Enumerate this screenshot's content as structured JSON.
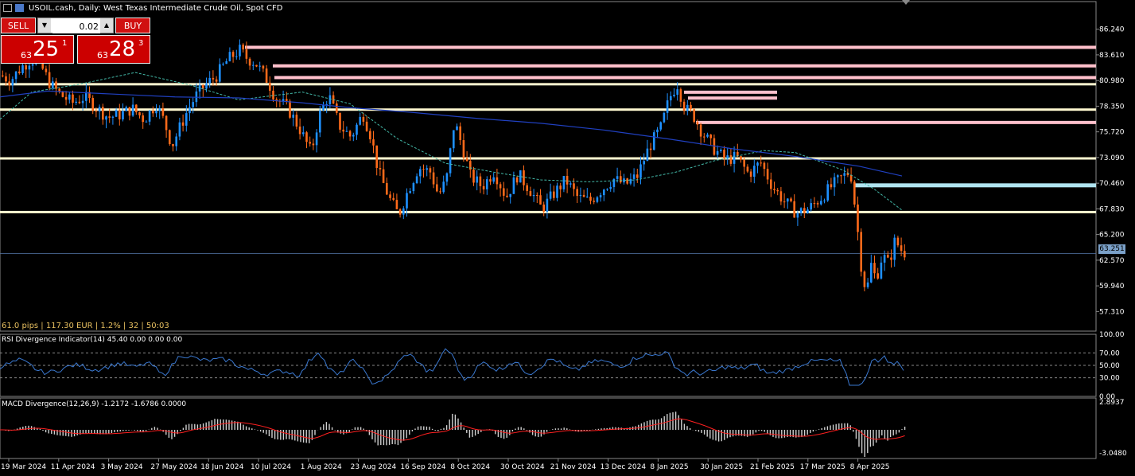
{
  "window": {
    "title": "USOIL.cash, Daily:  West Texas Intermediate Crude Oil, Spot CFD"
  },
  "trade_panel": {
    "sell_label": "SELL",
    "buy_label": "BUY",
    "volume": "0.02",
    "sell_price": {
      "prefix": "63",
      "big": "25",
      "sup": "1"
    },
    "buy_price": {
      "prefix": "63",
      "big": "28",
      "sup": "3"
    }
  },
  "info_line": "61.0 pips | 117.30 EUR | 1.2% | 32 | 50:03",
  "current_price": "63.251",
  "colors": {
    "bull": "#1e90ff",
    "bear": "#ff6a1a",
    "zone_pink": "#ffc0cb",
    "zone_cyan": "#b0e4f0",
    "level_white": "#fff8d0",
    "ma_fast": "#4a90c8",
    "ma_slow": "#2040c0",
    "rsi_line": "#3a78d0",
    "macd_hist": "#d0d0d0",
    "macd_signal": "#ff2020"
  },
  "price_axis": [
    "86.240",
    "83.610",
    "80.980",
    "78.350",
    "75.720",
    "73.090",
    "70.460",
    "67.830",
    "65.200",
    "62.570",
    "59.940",
    "57.310"
  ],
  "date_axis": [
    "19 Mar 2024",
    "11 Apr 2024",
    "3 May 2024",
    "27 May 2024",
    "18 Jun 2024",
    "10 Jul 2024",
    "1 Aug 2024",
    "23 Aug 2024",
    "16 Sep 2024",
    "8 Oct 2024",
    "30 Oct 2024",
    "21 Nov 2024",
    "13 Dec 2024",
    "8 Jan 2025",
    "30 Jan 2025",
    "21 Feb 2025",
    "17 Mar 2025",
    "8 Apr 2025"
  ],
  "rsi": {
    "label": "RSI Divergence Indicator(14) 45.40 0.00 0.00 0.00",
    "axis": [
      "100.00",
      "70.00",
      "50.00",
      "30.00",
      "0.00"
    ]
  },
  "macd": {
    "label": "MACD Divergence(12,26,9) -1.2172 -1.6786 0.0000",
    "axis": [
      "2.8937",
      "-3.0480"
    ]
  },
  "chart_data": {
    "type": "candlestick",
    "symbol": "USOIL.cash",
    "timeframe": "Daily",
    "ylim": [
      55.3,
      87.6
    ],
    "close_path": [
      [
        0,
        81.5
      ],
      [
        12,
        81.0
      ],
      [
        25,
        82.3
      ],
      [
        38,
        83.2
      ],
      [
        50,
        82.5
      ],
      [
        62,
        80.6
      ],
      [
        75,
        79.5
      ],
      [
        90,
        78.7
      ],
      [
        105,
        79.3
      ],
      [
        120,
        78.2
      ],
      [
        135,
        77.2
      ],
      [
        150,
        77.5
      ],
      [
        165,
        78.1
      ],
      [
        180,
        77.0
      ],
      [
        195,
        78.6
      ],
      [
        205,
        76.8
      ],
      [
        215,
        74.3
      ],
      [
        225,
        76.2
      ],
      [
        235,
        78.0
      ],
      [
        245,
        79.4
      ],
      [
        258,
        80.6
      ],
      [
        270,
        81.4
      ],
      [
        285,
        83.1
      ],
      [
        300,
        84.1
      ],
      [
        310,
        83.2
      ],
      [
        320,
        82.8
      ],
      [
        335,
        81.0
      ],
      [
        345,
        79.2
      ],
      [
        360,
        78.2
      ],
      [
        375,
        76.1
      ],
      [
        390,
        73.6
      ],
      [
        400,
        77.4
      ],
      [
        412,
        79.5
      ],
      [
        425,
        76.4
      ],
      [
        440,
        75.2
      ],
      [
        455,
        77.6
      ],
      [
        465,
        75.3
      ],
      [
        475,
        71.5
      ],
      [
        490,
        68.6
      ],
      [
        500,
        67.2
      ],
      [
        512,
        69.8
      ],
      [
        525,
        72.1
      ],
      [
        540,
        71.6
      ],
      [
        550,
        69.2
      ],
      [
        560,
        70.8
      ],
      [
        570,
        76.8
      ],
      [
        580,
        74.2
      ],
      [
        590,
        71.2
      ],
      [
        605,
        70.1
      ],
      [
        620,
        71.7
      ],
      [
        635,
        69.0
      ],
      [
        650,
        71.4
      ],
      [
        665,
        69.8
      ],
      [
        680,
        67.8
      ],
      [
        695,
        69.4
      ],
      [
        710,
        70.8
      ],
      [
        725,
        69.0
      ],
      [
        740,
        68.6
      ],
      [
        755,
        69.8
      ],
      [
        770,
        70.9
      ],
      [
        785,
        70.3
      ],
      [
        800,
        71.2
      ],
      [
        815,
        74.2
      ],
      [
        830,
        76.2
      ],
      [
        840,
        79.1
      ],
      [
        850,
        80.7
      ],
      [
        860,
        78.1
      ],
      [
        870,
        77.5
      ],
      [
        880,
        75.9
      ],
      [
        895,
        74.1
      ],
      [
        910,
        72.9
      ],
      [
        925,
        73.1
      ],
      [
        940,
        71.4
      ],
      [
        955,
        72.6
      ],
      [
        970,
        70.1
      ],
      [
        985,
        68.6
      ],
      [
        1000,
        67.4
      ],
      [
        1015,
        67.8
      ],
      [
        1030,
        68.9
      ],
      [
        1045,
        70.2
      ],
      [
        1058,
        71.1
      ],
      [
        1068,
        71.7
      ],
      [
        1075,
        67.2
      ],
      [
        1082,
        61.6
      ],
      [
        1088,
        59.2
      ],
      [
        1094,
        62.1
      ],
      [
        1100,
        60.6
      ],
      [
        1108,
        63.1
      ],
      [
        1116,
        62.2
      ],
      [
        1124,
        64.6
      ],
      [
        1132,
        63.6
      ],
      [
        1138,
        63.25
      ]
    ],
    "moving_average_fast": [
      [
        0,
        77.0
      ],
      [
        40,
        79.8
      ],
      [
        100,
        80.6
      ],
      [
        170,
        81.8
      ],
      [
        240,
        80.5
      ],
      [
        300,
        79.0
      ],
      [
        380,
        79.8
      ],
      [
        440,
        78.6
      ],
      [
        500,
        75.0
      ],
      [
        560,
        72.5
      ],
      [
        620,
        71.6
      ],
      [
        680,
        70.8
      ],
      [
        740,
        70.6
      ],
      [
        800,
        70.8
      ],
      [
        850,
        71.6
      ],
      [
        900,
        72.8
      ],
      [
        960,
        73.8
      ],
      [
        1000,
        73.6
      ],
      [
        1060,
        71.8
      ],
      [
        1100,
        69.8
      ],
      [
        1134,
        67.7
      ]
    ],
    "moving_average_slow": [
      [
        0,
        79.3
      ],
      [
        60,
        79.9
      ],
      [
        140,
        79.6
      ],
      [
        220,
        79.3
      ],
      [
        300,
        79.2
      ],
      [
        380,
        78.7
      ],
      [
        440,
        78.2
      ],
      [
        520,
        77.7
      ],
      [
        600,
        77.1
      ],
      [
        680,
        76.6
      ],
      [
        760,
        75.9
      ],
      [
        840,
        75.0
      ],
      [
        920,
        74.0
      ],
      [
        1000,
        73.2
      ],
      [
        1080,
        72.2
      ],
      [
        1134,
        71.2
      ]
    ],
    "horizontal_levels": [
      80.6,
      78.0,
      73.0,
      67.5
    ],
    "zones": [
      {
        "price": 84.3,
        "x_start": 308,
        "color": "pink"
      },
      {
        "price": 82.4,
        "x_start": 343,
        "color": "pink"
      },
      {
        "price": 81.2,
        "x_start": 345,
        "color": "pink"
      },
      {
        "price": 79.7,
        "x_start": 860,
        "x_end": 977,
        "color": "pink"
      },
      {
        "price": 79.1,
        "x_start": 865,
        "x_end": 977,
        "color": "pink"
      },
      {
        "price": 76.6,
        "x_start": 875,
        "color": "pink"
      },
      {
        "price": 70.2,
        "x_start": 1075,
        "color": "cyan"
      }
    ]
  }
}
